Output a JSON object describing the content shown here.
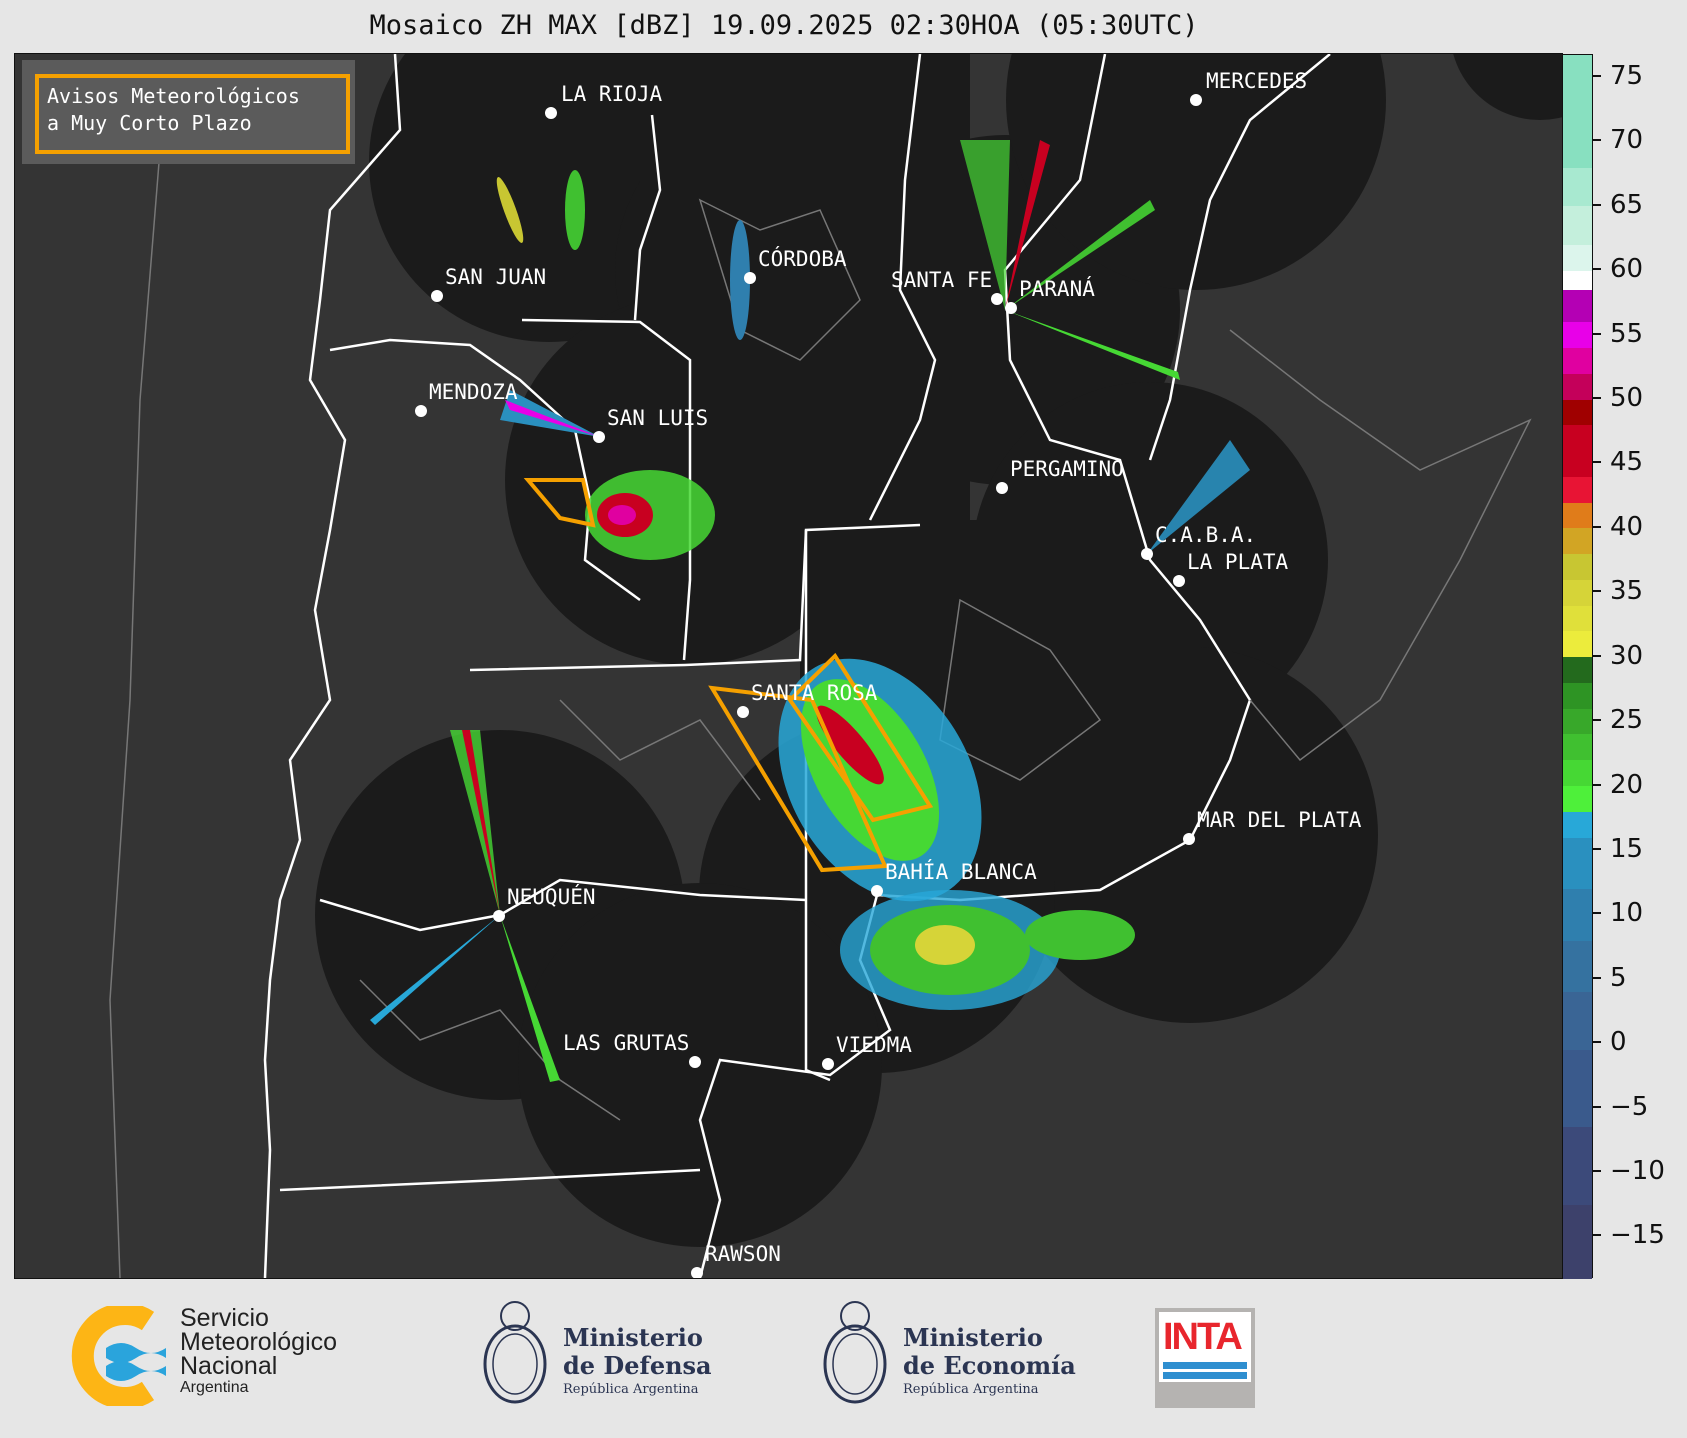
{
  "title": "Mosaico ZH MAX [dBZ] 19.09.2025 02:30HOA (05:30UTC)",
  "legend": {
    "line1": "Avisos Meteorológicos",
    "line2": "a Muy Corto Plazo",
    "border_color": "#f5a000"
  },
  "cities": [
    {
      "name": "LA RIOJA"
    },
    {
      "name": "SAN JUAN"
    },
    {
      "name": "CÓRDOBA"
    },
    {
      "name": "SANTA FE"
    },
    {
      "name": "PARANÁ"
    },
    {
      "name": "MERCEDES"
    },
    {
      "name": "MENDOZA"
    },
    {
      "name": "SAN LUIS"
    },
    {
      "name": "PERGAMINO"
    },
    {
      "name": "C.A.B.A."
    },
    {
      "name": "LA PLATA"
    },
    {
      "name": "SANTA ROSA"
    },
    {
      "name": "MAR DEL PLATA"
    },
    {
      "name": "BAHÍA BLANCA"
    },
    {
      "name": "NEUQUÉN"
    },
    {
      "name": "LAS GRUTAS"
    },
    {
      "name": "VIEDMA"
    },
    {
      "name": "RAWSON"
    }
  ],
  "colorbar": {
    "unit": "dBZ",
    "range": [
      -18.3,
      76.7
    ],
    "ticks": [
      "75",
      "70",
      "65",
      "60",
      "55",
      "50",
      "45",
      "40",
      "35",
      "30",
      "25",
      "20",
      "15",
      "10",
      "5",
      "0",
      "−5",
      "−10",
      "−15"
    ],
    "tick_values": [
      75,
      70,
      65,
      60,
      55,
      50,
      45,
      40,
      35,
      30,
      25,
      20,
      15,
      10,
      5,
      0,
      -5,
      -10,
      -15
    ],
    "bands": [
      {
        "from": -18.3,
        "to": -12.5,
        "color": "#3d416b"
      },
      {
        "from": -12.5,
        "to": -6.5,
        "color": "#3c4a7a"
      },
      {
        "from": -6.5,
        "to": -0.5,
        "color": "#3a5a8c"
      },
      {
        "from": -0.5,
        "to": 4,
        "color": "#3a6595"
      },
      {
        "from": 4,
        "to": 8,
        "color": "#3572a0"
      },
      {
        "from": 8,
        "to": 12,
        "color": "#2f7fae"
      },
      {
        "from": 12,
        "to": 16,
        "color": "#2a90bf"
      },
      {
        "from": 16,
        "to": 18,
        "color": "#28a8d8"
      },
      {
        "from": 18,
        "to": 20,
        "color": "#4ef03a"
      },
      {
        "from": 20,
        "to": 22,
        "color": "#46d834"
      },
      {
        "from": 22,
        "to": 24,
        "color": "#40c030"
      },
      {
        "from": 24,
        "to": 26,
        "color": "#38a82a"
      },
      {
        "from": 26,
        "to": 28,
        "color": "#2e9424"
      },
      {
        "from": 28,
        "to": 30,
        "color": "#236a1d"
      },
      {
        "from": 30,
        "to": 32,
        "color": "#ecec3c"
      },
      {
        "from": 32,
        "to": 34,
        "color": "#e0e03a"
      },
      {
        "from": 34,
        "to": 36,
        "color": "#d6d438"
      },
      {
        "from": 36,
        "to": 38,
        "color": "#c8c632"
      },
      {
        "from": 38,
        "to": 40,
        "color": "#d2a524"
      },
      {
        "from": 40,
        "to": 42,
        "color": "#e07c1a"
      },
      {
        "from": 42,
        "to": 44,
        "color": "#e81434"
      },
      {
        "from": 44,
        "to": 48,
        "color": "#c80020"
      },
      {
        "from": 48,
        "to": 50,
        "color": "#a00000"
      },
      {
        "from": 50,
        "to": 52,
        "color": "#c4005a"
      },
      {
        "from": 52,
        "to": 54,
        "color": "#e000a0"
      },
      {
        "from": 54,
        "to": 56,
        "color": "#e800e8"
      },
      {
        "from": 56,
        "to": 58.5,
        "color": "#b400b4"
      },
      {
        "from": 58.5,
        "to": 60,
        "color": "#ffffff"
      },
      {
        "from": 60,
        "to": 62,
        "color": "#dcf5ec"
      },
      {
        "from": 62,
        "to": 65,
        "color": "#c4efdc"
      },
      {
        "from": 65,
        "to": 68,
        "color": "#a8e9d0"
      },
      {
        "from": 68,
        "to": 76.7,
        "color": "#88e0c0"
      }
    ]
  },
  "footer": {
    "smn": {
      "line1": "Servicio",
      "line2": "Meteorológico",
      "line3": "Nacional",
      "line4": "Argentina"
    },
    "defensa": {
      "line1": "Ministerio",
      "line2": "de Defensa",
      "line3": "República Argentina"
    },
    "economia": {
      "line1": "Ministerio",
      "line2": "de Economía",
      "line3": "República Argentina"
    },
    "inta": {
      "label": "INTA"
    }
  }
}
